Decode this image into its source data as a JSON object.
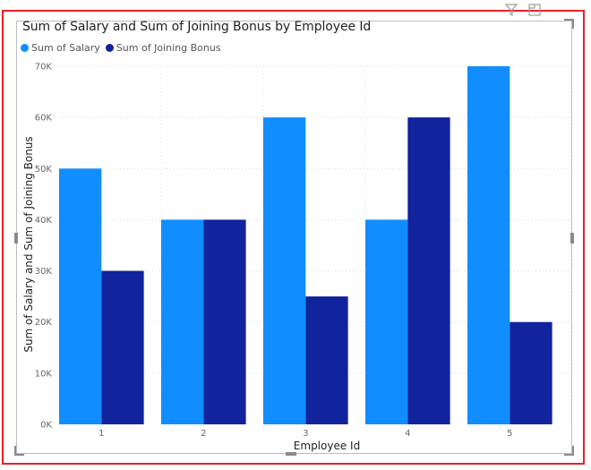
{
  "chart_data": {
    "type": "bar",
    "title": "Sum of Salary and Sum of Joining Bonus by Employee Id",
    "xlabel": "Employee Id",
    "ylabel": "Sum of Salary and Sum of Joining Bonus",
    "categories": [
      "1",
      "2",
      "3",
      "4",
      "5"
    ],
    "series": [
      {
        "name": "Sum of Salary",
        "color": "#118dff",
        "values": [
          50000,
          40000,
          60000,
          40000,
          70000
        ]
      },
      {
        "name": "Sum of Joining Bonus",
        "color": "#12239e",
        "values": [
          30000,
          40000,
          25000,
          60000,
          20000
        ]
      }
    ],
    "ylim": [
      0,
      70000
    ],
    "yticks": [
      0,
      10000,
      20000,
      30000,
      40000,
      50000,
      60000,
      70000
    ],
    "ytick_labels": [
      "0K",
      "10K",
      "20K",
      "30K",
      "40K",
      "50K",
      "60K",
      "70K"
    ],
    "grid": true,
    "legend_position": "top-left"
  },
  "header_icons": [
    "filter-icon",
    "focus-mode-icon"
  ],
  "selection_color": "#e8202a"
}
